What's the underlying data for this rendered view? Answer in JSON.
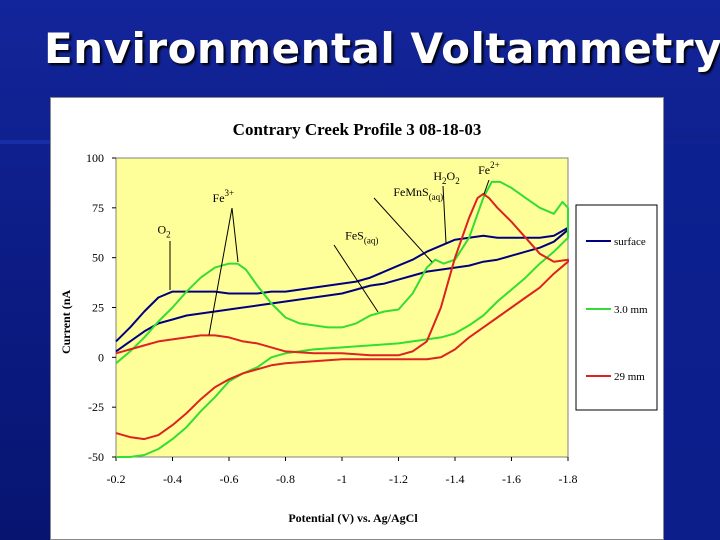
{
  "slide": {
    "title": "Environmental Voltammetry",
    "colors": {
      "background": "#0b1a7a",
      "title_text": "#ffffff"
    }
  },
  "chart_data": {
    "type": "line",
    "title": "Contrary Creek Profile 3 08-18-03",
    "xlabel": "Potential (V) vs. Ag/AgCl",
    "ylabel": "Current (nA",
    "xlim": [
      -0.2,
      -1.8
    ],
    "ylim": [
      -50,
      100
    ],
    "x_ticks": [
      "-0.2",
      "-0.4",
      "-0.6",
      "-0.8",
      "-1",
      "-1.2",
      "-1.4",
      "-1.6",
      "-1.8"
    ],
    "y_ticks": [
      "100",
      "75",
      "50",
      "25",
      "0",
      "-25",
      "-50"
    ],
    "plot_background": "#ffff99",
    "grid": false,
    "legend_position": "right",
    "annotations": [
      {
        "base": "O",
        "sub": "2",
        "sup": "",
        "x": -0.37,
        "y": 62
      },
      {
        "base": "Fe",
        "sub": "",
        "sup": "3+",
        "x": -0.58,
        "y": 78
      },
      {
        "base": "FeS",
        "sub": "(aq)",
        "sup": "",
        "x": -1.07,
        "y": 59
      },
      {
        "base": "FeMnS",
        "sub": "(aq)",
        "sup": "",
        "x": -1.27,
        "y": 81
      },
      {
        "base": "H",
        "sub": "2",
        "sup": "",
        "base2": "O",
        "sub2": "2",
        "x": -1.37,
        "y": 89
      },
      {
        "base": "Fe",
        "sub": "",
        "sup": "2+",
        "x": -1.52,
        "y": 92
      }
    ],
    "series": [
      {
        "name": "surface",
        "color": "#000080",
        "x": [
          -0.2,
          -0.25,
          -0.3,
          -0.35,
          -0.4,
          -0.45,
          -0.5,
          -0.55,
          -0.6,
          -0.65,
          -0.7,
          -0.75,
          -0.8,
          -0.85,
          -0.9,
          -0.95,
          -1.0,
          -1.05,
          -1.1,
          -1.15,
          -1.2,
          -1.25,
          -1.3,
          -1.35,
          -1.4,
          -1.45,
          -1.5,
          -1.55,
          -1.6,
          -1.65,
          -1.7,
          -1.75,
          -1.8,
          -1.8,
          -1.75,
          -1.7,
          -1.65,
          -1.6,
          -1.55,
          -1.5,
          -1.45,
          -1.4,
          -1.35,
          -1.3,
          -1.25,
          -1.2,
          -1.15,
          -1.1,
          -1.05,
          -1.0,
          -0.95,
          -0.9,
          -0.85,
          -0.8,
          -0.75,
          -0.7,
          -0.65,
          -0.6,
          -0.55,
          -0.5,
          -0.45,
          -0.4,
          -0.35,
          -0.3,
          -0.25,
          -0.2
        ],
        "y": [
          8,
          15,
          23,
          30,
          33,
          33,
          33,
          33,
          32,
          32,
          32,
          33,
          33,
          34,
          35,
          36,
          37,
          38,
          40,
          43,
          46,
          49,
          53,
          56,
          59,
          60,
          61,
          60,
          60,
          60,
          60,
          61,
          65,
          64,
          58,
          55,
          53,
          51,
          49,
          48,
          46,
          45,
          44,
          43,
          41,
          39,
          37,
          36,
          34,
          32,
          31,
          30,
          29,
          28,
          27,
          26,
          25,
          24,
          23,
          22,
          21,
          19,
          17,
          13,
          8,
          3
        ]
      },
      {
        "name": "3.0 mm",
        "color": "#33dd33",
        "x": [
          -0.2,
          -0.25,
          -0.3,
          -0.35,
          -0.4,
          -0.45,
          -0.5,
          -0.55,
          -0.6,
          -0.63,
          -0.66,
          -0.7,
          -0.75,
          -0.8,
          -0.85,
          -0.9,
          -0.95,
          -1.0,
          -1.05,
          -1.1,
          -1.15,
          -1.2,
          -1.25,
          -1.3,
          -1.33,
          -1.36,
          -1.4,
          -1.45,
          -1.5,
          -1.53,
          -1.56,
          -1.6,
          -1.65,
          -1.7,
          -1.75,
          -1.78,
          -1.8,
          -1.8,
          -1.75,
          -1.7,
          -1.65,
          -1.6,
          -1.55,
          -1.5,
          -1.45,
          -1.4,
          -1.35,
          -1.3,
          -1.25,
          -1.2,
          -1.1,
          -1.0,
          -0.9,
          -0.8,
          -0.75,
          -0.7,
          -0.65,
          -0.6,
          -0.55,
          -0.5,
          -0.45,
          -0.4,
          -0.35,
          -0.3,
          -0.25,
          -0.2
        ],
        "y": [
          -3,
          3,
          10,
          18,
          25,
          33,
          40,
          45,
          47,
          47,
          44,
          36,
          27,
          20,
          17,
          16,
          15,
          15,
          17,
          21,
          23,
          24,
          32,
          45,
          49,
          47,
          49,
          60,
          80,
          88,
          88,
          85,
          80,
          75,
          72,
          78,
          75,
          60,
          53,
          47,
          40,
          34,
          28,
          21,
          16,
          12,
          10,
          9,
          8,
          7,
          6,
          5,
          4,
          2,
          0,
          -5,
          -8,
          -12,
          -20,
          -27,
          -35,
          -41,
          -46,
          -49,
          -50,
          -50
        ]
      },
      {
        "name": "29 mm",
        "color": "#dd2222",
        "x": [
          -0.2,
          -0.25,
          -0.3,
          -0.35,
          -0.4,
          -0.45,
          -0.5,
          -0.55,
          -0.6,
          -0.65,
          -0.7,
          -0.75,
          -0.8,
          -0.9,
          -1.0,
          -1.1,
          -1.2,
          -1.25,
          -1.3,
          -1.35,
          -1.4,
          -1.45,
          -1.48,
          -1.5,
          -1.52,
          -1.55,
          -1.6,
          -1.65,
          -1.7,
          -1.75,
          -1.8,
          -1.8,
          -1.75,
          -1.7,
          -1.65,
          -1.6,
          -1.55,
          -1.5,
          -1.45,
          -1.4,
          -1.35,
          -1.3,
          -1.2,
          -1.1,
          -1.0,
          -0.9,
          -0.8,
          -0.75,
          -0.7,
          -0.65,
          -0.6,
          -0.55,
          -0.5,
          -0.45,
          -0.4,
          -0.35,
          -0.3,
          -0.25,
          -0.2
        ],
        "y": [
          2,
          4,
          6,
          8,
          9,
          10,
          11,
          11,
          10,
          8,
          7,
          5,
          3,
          2,
          2,
          1,
          1,
          3,
          8,
          25,
          50,
          70,
          80,
          82,
          80,
          75,
          68,
          60,
          52,
          48,
          49,
          48,
          42,
          35,
          30,
          25,
          20,
          15,
          10,
          4,
          0,
          -1,
          -1,
          -1,
          -1,
          -2,
          -3,
          -4,
          -6,
          -8,
          -11,
          -15,
          -21,
          -28,
          -34,
          -39,
          -41,
          -40,
          -38
        ]
      }
    ]
  }
}
